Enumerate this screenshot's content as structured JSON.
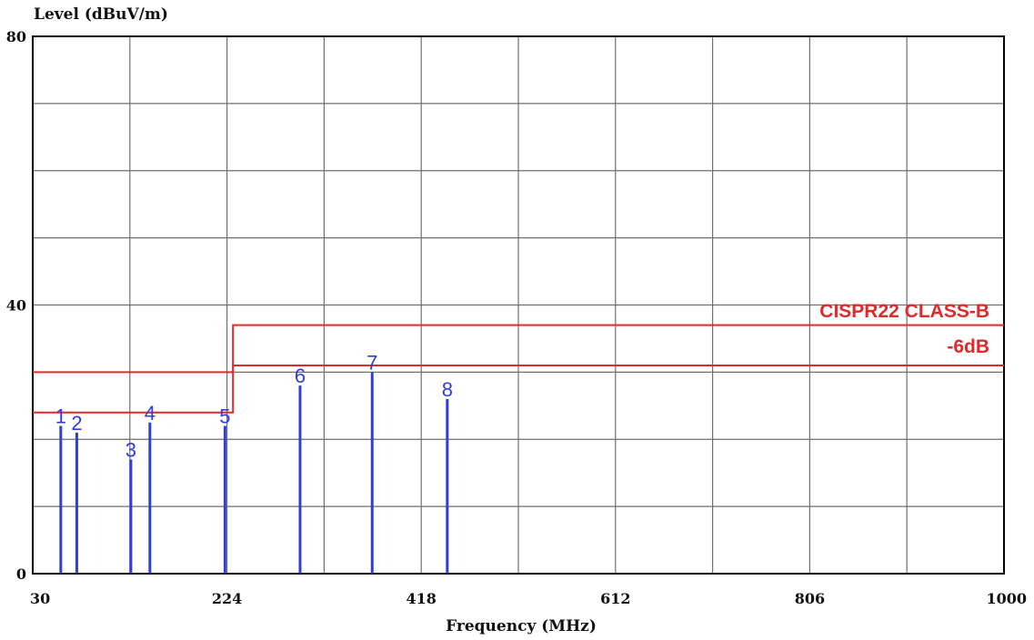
{
  "chart_data": {
    "type": "bar",
    "title": "",
    "ylabel": "Level (dBuV/m)",
    "xlabel": "Frequency (MHz)",
    "xlim": [
      30,
      1000
    ],
    "ylim": [
      0,
      80
    ],
    "x_ticks": [
      "30",
      "224",
      "418",
      "612",
      "806",
      "1000"
    ],
    "y_ticks": [
      "0",
      "40",
      "80"
    ],
    "grid": true,
    "markers": [
      {
        "label": "1",
        "x": 58,
        "y": 22
      },
      {
        "label": "2",
        "x": 74,
        "y": 21
      },
      {
        "label": "3",
        "x": 128,
        "y": 17
      },
      {
        "label": "4",
        "x": 147,
        "y": 22.5
      },
      {
        "label": "5",
        "x": 222,
        "y": 22
      },
      {
        "label": "6",
        "x": 297,
        "y": 28
      },
      {
        "label": "7",
        "x": 369,
        "y": 30
      },
      {
        "label": "8",
        "x": 444,
        "y": 26
      }
    ],
    "limit_lines": [
      {
        "name": "CISPR22 CLASS-B",
        "segments": [
          [
            30,
            230,
            30
          ],
          [
            230,
            1000,
            37
          ]
        ]
      },
      {
        "name": "-6dB",
        "segments": [
          [
            30,
            230,
            24
          ],
          [
            230,
            1000,
            31
          ]
        ]
      }
    ],
    "colors": {
      "markers": "#2f3fd6",
      "limit": "#e02a2a",
      "grid": "#6f6f6f",
      "frame": "#000000"
    }
  }
}
